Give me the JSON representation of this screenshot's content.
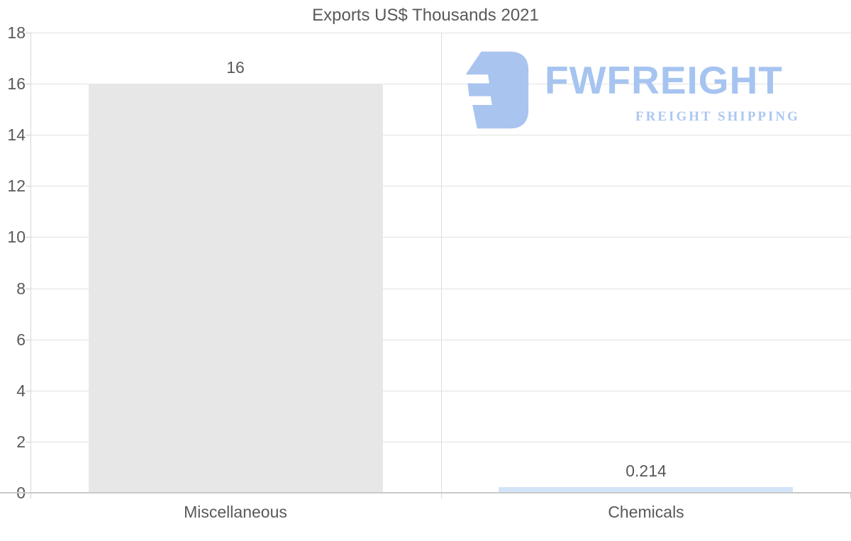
{
  "page": {
    "background": "#ffffff"
  },
  "chart_data": {
    "type": "bar",
    "title": "Exports US$ Thousands 2021",
    "categories": [
      "Miscellaneous",
      "Chemicals"
    ],
    "values": [
      16,
      0.214
    ],
    "value_labels": [
      "16",
      "0.214"
    ],
    "bar_colors": [
      "#e7e7e7",
      "#d3e3f8"
    ],
    "ylim": [
      0,
      18
    ],
    "ytick_step": 2,
    "ytick_labels": [
      "0",
      "2",
      "4",
      "6",
      "8",
      "10",
      "12",
      "14",
      "16",
      "18"
    ],
    "xlabel": "",
    "ylabel": "",
    "grid": "on",
    "legend": "none"
  },
  "watermark": {
    "brand": "FWFREIGHT",
    "tagline": "FREIGHT SHIPPING",
    "glyph_color": "#a9c4ef"
  },
  "colors": {
    "title_text": "#595959",
    "axis_text": "#595959",
    "gridline": "#e2e2e2",
    "axis_line": "#c9c9c9"
  }
}
